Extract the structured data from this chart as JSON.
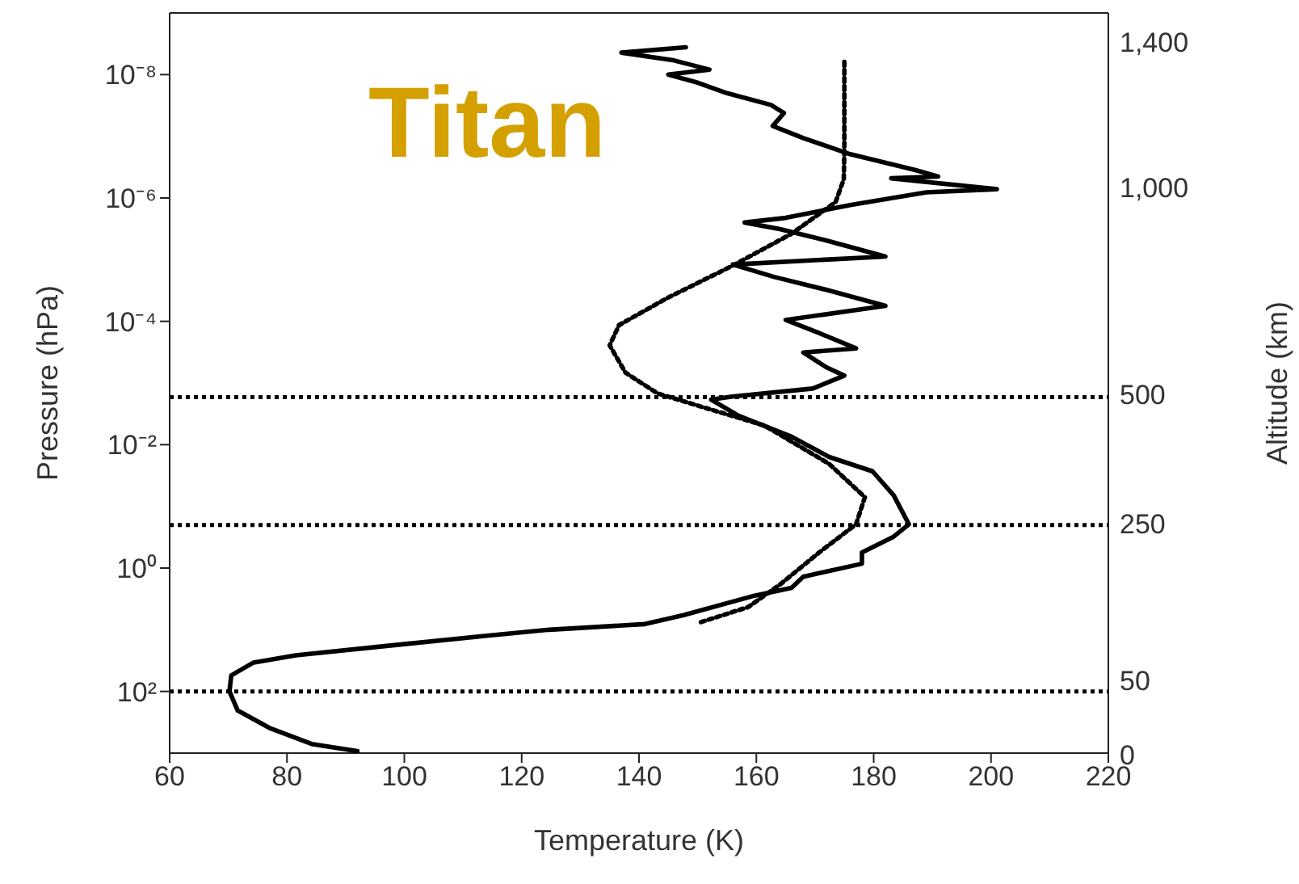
{
  "chart_data": {
    "type": "line",
    "title": "Titan",
    "xlabel": "Temperature (K)",
    "ylabel": "Pressure (hPa)",
    "y2label": "Altitude (km)",
    "xlim": [
      60,
      220
    ],
    "xticks": [
      60,
      80,
      100,
      120,
      140,
      160,
      180,
      200,
      220
    ],
    "ylim": [
      1000,
      1e-09
    ],
    "log": "y",
    "yticks": [
      {
        "value": 1e-08,
        "label": "10⁻⁸"
      },
      {
        "value": 1e-06,
        "label": "10⁻⁶"
      },
      {
        "value": 0.0001,
        "label": "10⁻⁴"
      },
      {
        "value": 0.01,
        "label": "10⁻²"
      },
      {
        "value": 1,
        "label": "10⁰"
      },
      {
        "value": 100,
        "label": "10²"
      }
    ],
    "marker": "none",
    "annotations": [
      "1,400",
      "1,000",
      "500",
      "250",
      "50",
      "0"
    ],
    "ref_lines": [
      {
        "axis": "y",
        "value": 0.0017,
        "color": "#000000",
        "line_style": "dotted"
      },
      {
        "axis": "y",
        "value": 0.2,
        "color": "#000000",
        "line_style": "dotted"
      },
      {
        "axis": "y",
        "value": 100,
        "color": "#000000",
        "line_style": "dotted"
      }
    ],
    "series": [
      {
        "color": "#000000",
        "line_style": "solid",
        "x": [
          148,
          137,
          146,
          152,
          145,
          150,
          155,
          162.5,
          164.7,
          162.8,
          168,
          176,
          187,
          191,
          183,
          201,
          189,
          176,
          165,
          158,
          164,
          172,
          182,
          156,
          163,
          172,
          182,
          165,
          170.7,
          177,
          168,
          172,
          175,
          169.6,
          155.9,
          152.3,
          157,
          166,
          172.4,
          179.8,
          183.4,
          186,
          183.4,
          178,
          178,
          168,
          166,
          159.7,
          147.6,
          141,
          124.7,
          113.7,
          95.3,
          81.5,
          74.3,
          70.5,
          70.2,
          71.6,
          77,
          84.2,
          92
        ],
        "values": [
          3.6e-09,
          4.4e-09,
          5.9e-09,
          8.3e-09,
          1e-08,
          1.35e-08,
          2e-08,
          3.1e-08,
          4.2e-08,
          6.8e-08,
          1.07e-07,
          1.95e-07,
          3.5e-07,
          4.5e-07,
          4.8e-07,
          7.2e-07,
          8.1e-07,
          1.3e-06,
          2.1e-06,
          2.5e-06,
          3.2e-06,
          4.9e-06,
          8.9e-06,
          1.2e-05,
          1.9e-05,
          3.1e-05,
          5.6e-05,
          9.5e-05,
          0.000155,
          0.000275,
          0.00032,
          0.00056,
          0.00076,
          0.00123,
          0.00166,
          0.00186,
          0.0034,
          0.0074,
          0.0158,
          0.027,
          0.066,
          0.195,
          0.31,
          0.56,
          0.85,
          1.38,
          2.1,
          2.8,
          5.8,
          8.1,
          10,
          12.6,
          19,
          26,
          34,
          55,
          100,
          204,
          390,
          710,
          930
        ]
      },
      {
        "color": "#000000",
        "line_style": "dotted",
        "x": [
          175,
          175,
          174.9,
          173.5,
          166,
          155.9,
          144.8,
          136.6,
          135,
          137.7,
          143.2,
          152.3,
          161.4,
          172.4,
          178.5,
          177,
          170.7,
          164,
          158.6,
          150
        ],
        "values": [
          6.2e-09,
          1.95e-07,
          5e-07,
          1.17e-06,
          3.8e-06,
          1.26e-05,
          4.2e-05,
          0.000115,
          0.000245,
          0.00068,
          0.00148,
          0.0027,
          0.0049,
          0.0204,
          0.071,
          0.195,
          0.56,
          1.86,
          4.3,
          7.8
        ]
      }
    ]
  }
}
